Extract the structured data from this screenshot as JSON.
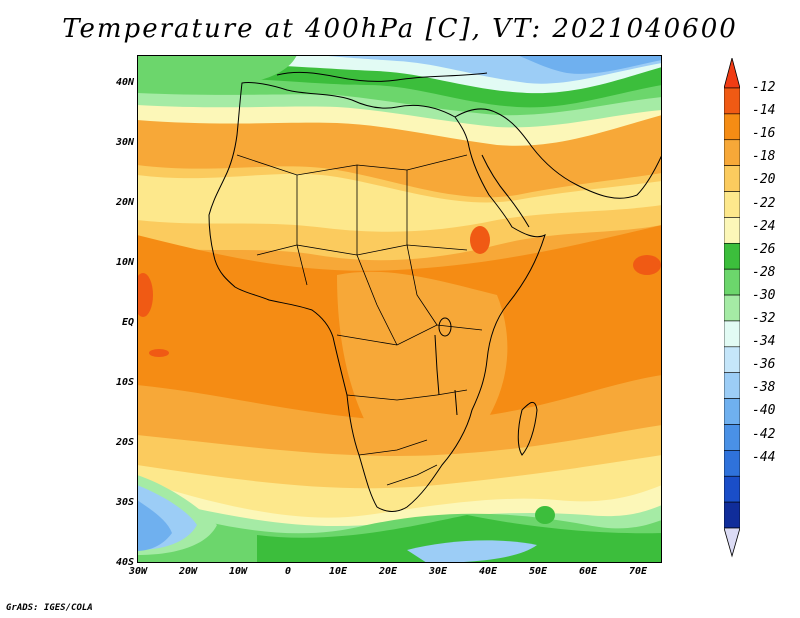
{
  "title": "Temperature at 400hPa [C], VT: 2021040600",
  "footer": "GrADS: IGES/COLA",
  "map": {
    "lat_ticks": [
      "40N",
      "30N",
      "20N",
      "10N",
      "EQ",
      "10S",
      "20S",
      "30S",
      "40S"
    ],
    "lon_ticks": [
      "30W",
      "20W",
      "10W",
      "0",
      "10E",
      "20E",
      "30E",
      "40E",
      "50E",
      "60E",
      "70E"
    ]
  },
  "colorbar": {
    "labels": [
      "-12",
      "-14",
      "-16",
      "-18",
      "-20",
      "-22",
      "-24",
      "-26",
      "-28",
      "-30",
      "-32",
      "-34",
      "-36",
      "-38",
      "-40",
      "-42",
      "-44"
    ],
    "colors": {
      "top_arrow": "#f03c14",
      "band_m12": "#f05a14",
      "band_m14": "#f58c14",
      "band_m16": "#f7a838",
      "band_m18": "#fbcb5e",
      "band_m20": "#fde88c",
      "band_m22": "#fcf7b8",
      "band_m24": "#3cbe3c",
      "band_m26": "#6cd66c",
      "band_m28": "#a5eba5",
      "band_m30": "#e2fbf4",
      "band_m32": "#c5e6fa",
      "band_m34": "#9ccdf6",
      "band_m36": "#6fb0ef",
      "band_m38": "#4a91e6",
      "band_m40": "#2f72db",
      "band_m42": "#1a4ec8",
      "band_m44": "#102d9a",
      "bottom_arrow": "#dcdcf5"
    }
  }
}
